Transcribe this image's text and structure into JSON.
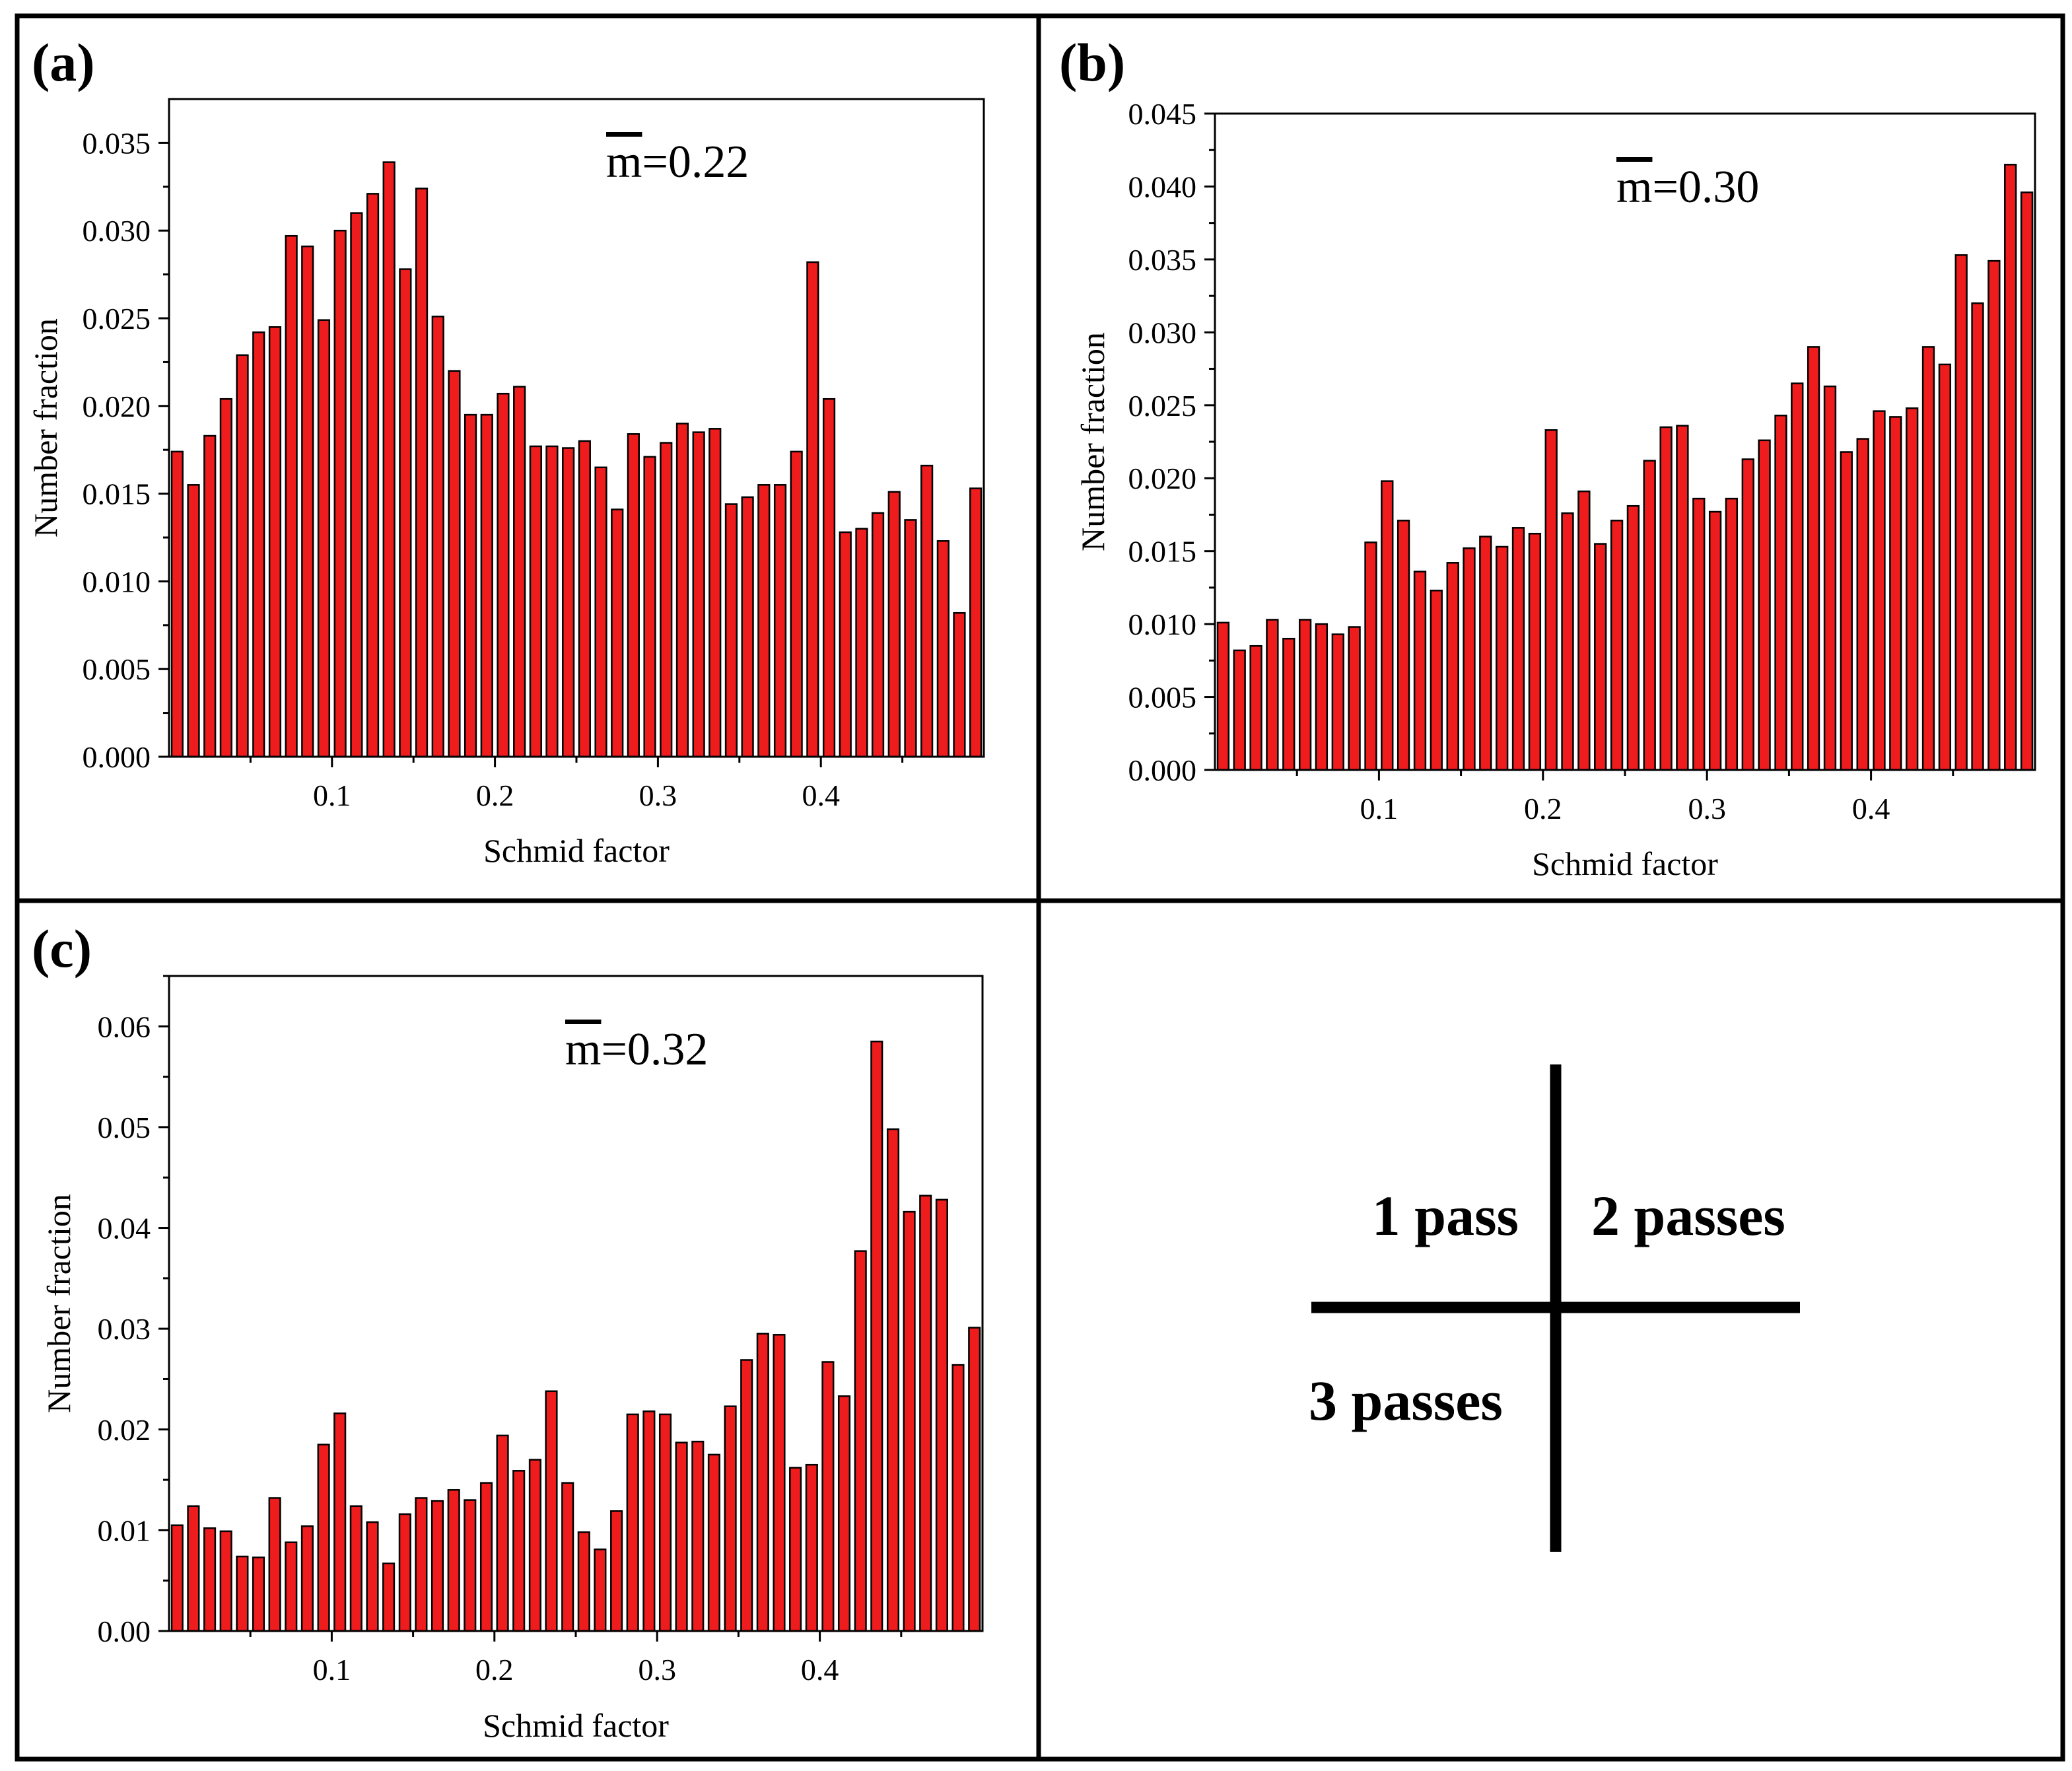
{
  "colors": {
    "bar": "#ee1c1c",
    "bar_edge": "#000000",
    "line": "#000000",
    "background": "#ffffff"
  },
  "chart_data": [
    {
      "id": "a",
      "type": "bar",
      "panel_label": "(a)",
      "annotation": "m=0.22",
      "annotation_parts": {
        "symbol": "m",
        "value": "=0.22"
      },
      "xlabel": "Schmid factor",
      "ylabel": "Number fraction",
      "xlim": [
        0,
        0.5
      ],
      "ylim": [
        0,
        0.0375
      ],
      "xticks": [
        "0.1",
        "0.2",
        "0.3",
        "0.4"
      ],
      "yticks": [
        "0.000",
        "0.005",
        "0.010",
        "0.015",
        "0.020",
        "0.025",
        "0.030",
        "0.035"
      ],
      "bin_width": 0.01,
      "values": [
        0.0174,
        0.0155,
        0.0183,
        0.0204,
        0.0229,
        0.0242,
        0.0245,
        0.0297,
        0.0291,
        0.0249,
        0.03,
        0.031,
        0.0321,
        0.0339,
        0.0278,
        0.0324,
        0.0251,
        0.022,
        0.0195,
        0.0195,
        0.0207,
        0.0211,
        0.0177,
        0.0177,
        0.0176,
        0.018,
        0.0165,
        0.0141,
        0.0184,
        0.0171,
        0.0179,
        0.019,
        0.0185,
        0.0187,
        0.0144,
        0.0148,
        0.0155,
        0.0155,
        0.0174,
        0.0282,
        0.0204,
        0.0128,
        0.013,
        0.0139,
        0.0151,
        0.0135,
        0.0166,
        0.0123,
        0.0082,
        0.0153
      ]
    },
    {
      "id": "b",
      "type": "bar",
      "panel_label": "(b)",
      "annotation": "m=0.30",
      "annotation_parts": {
        "symbol": "m",
        "value": "=0.30"
      },
      "xlabel": "Schmid factor",
      "ylabel": "Number fraction",
      "xlim": [
        0,
        0.5
      ],
      "ylim": [
        0,
        0.045
      ],
      "xticks": [
        "0.1",
        "0.2",
        "0.3",
        "0.4"
      ],
      "yticks": [
        "0.000",
        "0.005",
        "0.010",
        "0.015",
        "0.020",
        "0.025",
        "0.030",
        "0.035",
        "0.040",
        "0.045"
      ],
      "bin_width": 0.01,
      "values": [
        0.0101,
        0.0082,
        0.0085,
        0.0103,
        0.009,
        0.0103,
        0.01,
        0.0093,
        0.0098,
        0.0156,
        0.0198,
        0.0171,
        0.0136,
        0.0123,
        0.0142,
        0.0152,
        0.016,
        0.0153,
        0.0166,
        0.0162,
        0.0233,
        0.0176,
        0.0191,
        0.0155,
        0.0171,
        0.0181,
        0.0212,
        0.0235,
        0.0236,
        0.0186,
        0.0177,
        0.0186,
        0.0213,
        0.0226,
        0.0243,
        0.0265,
        0.029,
        0.0263,
        0.0218,
        0.0227,
        0.0246,
        0.0242,
        0.0248,
        0.029,
        0.0278,
        0.0353,
        0.032,
        0.0349,
        0.0415,
        0.0396
      ]
    },
    {
      "id": "c",
      "type": "bar",
      "panel_label": "(c)",
      "annotation": "m=0.32",
      "annotation_parts": {
        "symbol": "m",
        "value": "=0.32"
      },
      "xlabel": "Schmid factor",
      "ylabel": "Number fraction",
      "xlim": [
        0,
        0.5
      ],
      "ylim": [
        0,
        0.065
      ],
      "xticks": [
        "0.1",
        "0.2",
        "0.3",
        "0.4"
      ],
      "yticks": [
        "0.00",
        "0.01",
        "0.02",
        "0.03",
        "0.04",
        "0.05",
        "0.06"
      ],
      "bin_width": 0.01,
      "values": [
        0.0105,
        0.0124,
        0.0102,
        0.0099,
        0.0074,
        0.0073,
        0.0132,
        0.0088,
        0.0104,
        0.0185,
        0.0216,
        0.0124,
        0.0108,
        0.0067,
        0.0116,
        0.0132,
        0.0129,
        0.014,
        0.013,
        0.0147,
        0.0194,
        0.0159,
        0.017,
        0.0238,
        0.0147,
        0.0098,
        0.0081,
        0.0119,
        0.0215,
        0.0218,
        0.0215,
        0.0187,
        0.0188,
        0.0175,
        0.0223,
        0.0269,
        0.0295,
        0.0294,
        0.0162,
        0.0165,
        0.0267,
        0.0233,
        0.0377,
        0.0585,
        0.0498,
        0.0416,
        0.0432,
        0.0428,
        0.0264,
        0.0301
      ]
    }
  ],
  "legend_panel": {
    "top_left": "1 pass",
    "top_right": "2 passes",
    "bottom_left": "3 passes"
  }
}
